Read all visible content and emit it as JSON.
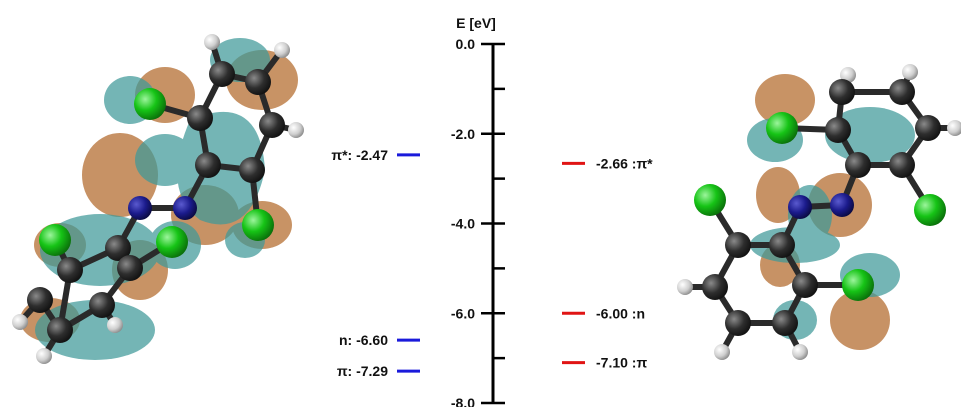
{
  "axis": {
    "label": "E [eV]",
    "ticks": [
      {
        "value": 0.0,
        "label": "0.0"
      },
      {
        "value": -2.0,
        "label": "-2.0"
      },
      {
        "value": -4.0,
        "label": "-4.0"
      },
      {
        "value": -6.0,
        "label": "-6.0"
      },
      {
        "value": -8.0,
        "label": "-8.0"
      }
    ],
    "range": [
      -8.0,
      0.0
    ]
  },
  "left_levels": [
    {
      "label": "π*: -2.47",
      "energy": -2.47,
      "color": "#1a1adb"
    },
    {
      "label": "n: -6.60",
      "energy": -6.6,
      "color": "#1a1adb"
    },
    {
      "label": "π: -7.29",
      "energy": -7.29,
      "color": "#1a1adb"
    }
  ],
  "right_levels": [
    {
      "label": "-2.66 :π*",
      "energy": -2.66,
      "color": "#e01414"
    },
    {
      "label": "-6.00 :n",
      "energy": -6.0,
      "color": "#e01414"
    },
    {
      "label": "-7.10 :π",
      "energy": -7.1,
      "color": "#e01414"
    }
  ],
  "colors": {
    "lobe_orange": "#b8743a",
    "lobe_teal": "#3f9999",
    "carbon": "#2e2e2e",
    "hydrogen": "#d8d8d8",
    "chlorine": "#16c416",
    "nitrogen": "#1b1b8c",
    "axis": "#000000"
  }
}
